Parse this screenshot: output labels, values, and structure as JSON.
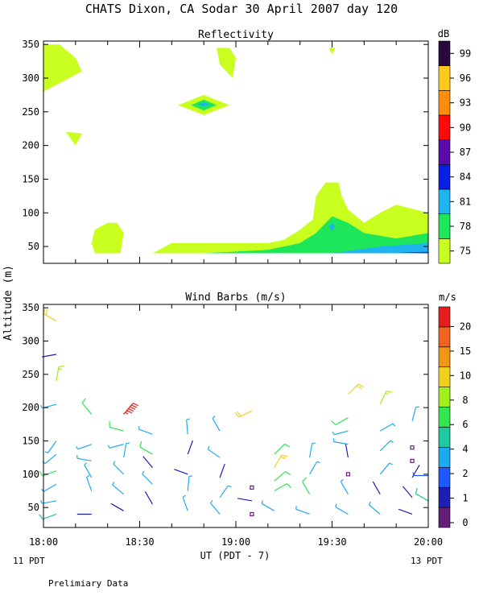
{
  "header": {
    "title": "CHATS Dixon, CA  Sodar  30 April 2007  day 120"
  },
  "footer": {
    "left_label": "11 PDT",
    "right_label": "13 PDT",
    "note": "Prelimiary Data"
  },
  "colors": {
    "refl": [
      "#c8ff1e",
      "#1ee65a",
      "#1eb4f0",
      "#0a1ee6",
      "#5a0aaa",
      "#ff0a0a",
      "#ff8c0a",
      "#ffc81e",
      "#2a0a3c"
    ],
    "wind": [
      "#641e78",
      "#1e1eb4",
      "#1e5aff",
      "#1eaaf0",
      "#1ec8a0",
      "#32e650",
      "#a0f01e",
      "#f0d21e",
      "#f09614",
      "#f0641e",
      "#e61e1e"
    ]
  },
  "chart_data": [
    {
      "type": "heatmap",
      "title": "Reflectivity",
      "colorbar_label": "dB",
      "colorbar_ticks": [
        "75",
        "78",
        "81",
        "84",
        "87",
        "90",
        "93",
        "96",
        "99"
      ],
      "ylim": [
        25,
        355
      ],
      "y_ticks": [
        "350",
        "300",
        "250",
        "200",
        "150",
        "100",
        "50"
      ],
      "xlim": [
        "18:00",
        "20:00"
      ],
      "regions": [
        {
          "level": 75,
          "x": [
            "18:00",
            "18:05",
            "18:10",
            "18:12",
            "18:08",
            "18:00",
            "18:00"
          ],
          "y": [
            350,
            350,
            330,
            310,
            300,
            280,
            350
          ]
        },
        {
          "level": 75,
          "x": [
            "18:54",
            "18:58",
            "19:00",
            "18:59",
            "18:55",
            "18:54"
          ],
          "y": [
            345,
            345,
            330,
            300,
            320,
            345
          ]
        },
        {
          "level": 75,
          "x": [
            "19:29",
            "19:31",
            "19:30",
            "19:29"
          ],
          "y": [
            345,
            345,
            335,
            345
          ]
        },
        {
          "level": 75,
          "x": [
            "18:42",
            "18:50",
            "18:58",
            "18:50",
            "18:42"
          ],
          "y": [
            260,
            275,
            260,
            245,
            260
          ]
        },
        {
          "level": 75,
          "x": [
            "18:07",
            "18:12",
            "18:10",
            "18:07"
          ],
          "y": [
            220,
            218,
            200,
            220
          ]
        },
        {
          "level": 75,
          "x": [
            "18:16",
            "18:20",
            "18:23",
            "18:25",
            "18:24",
            "18:16",
            "18:15",
            "18:16"
          ],
          "y": [
            75,
            85,
            85,
            70,
            40,
            40,
            55,
            75
          ]
        },
        {
          "level": 75,
          "x": [
            "18:34",
            "18:40",
            "19:10",
            "19:15",
            "19:20",
            "19:24",
            "19:25",
            "19:28",
            "19:32",
            "19:33",
            "19:35",
            "19:40",
            "19:45",
            "19:50",
            "20:00",
            "20:00",
            "18:34"
          ],
          "y": [
            40,
            55,
            55,
            60,
            75,
            90,
            125,
            145,
            145,
            125,
            105,
            85,
            100,
            112,
            100,
            40,
            40
          ]
        },
        {
          "level": 78,
          "x": [
            "18:50",
            "19:10",
            "19:20",
            "19:25",
            "19:30",
            "19:35",
            "19:40",
            "19:50",
            "20:00",
            "20:00",
            "18:50"
          ],
          "y": [
            40,
            45,
            55,
            70,
            95,
            85,
            70,
            62,
            70,
            40,
            40
          ]
        },
        {
          "level": 78,
          "x": [
            "18:46",
            "18:50",
            "18:54",
            "18:50",
            "18:46"
          ],
          "y": [
            260,
            268,
            260,
            252,
            260
          ]
        },
        {
          "level": 81,
          "x": [
            "19:30",
            "19:45",
            "20:00",
            "20:00",
            "19:30"
          ],
          "y": [
            40,
            50,
            55,
            40,
            40
          ]
        },
        {
          "level": 81,
          "x": [
            "19:29",
            "19:30",
            "19:31",
            "19:30",
            "19:29"
          ],
          "y": [
            80,
            85,
            80,
            73,
            80
          ]
        },
        {
          "level": 81,
          "x": [
            "18:48",
            "18:50",
            "18:52",
            "18:50",
            "18:48"
          ],
          "y": [
            261,
            264,
            261,
            258,
            261
          ]
        },
        {
          "level": 84,
          "x": [
            "19:50",
            "20:00",
            "20:00",
            "19:50"
          ],
          "y": [
            41,
            42,
            40,
            41
          ]
        }
      ]
    },
    {
      "type": "scatter",
      "title": "Wind Barbs (m/s)",
      "colorbar_label": "m/s",
      "colorbar_ticks": [
        "0",
        "1",
        "2",
        "4",
        "6",
        "8",
        "10",
        "15",
        "20"
      ],
      "ylabel": "Altitude (m)",
      "xlabel": "UT  (PDT - 7)",
      "ylim": [
        20,
        355
      ],
      "y_ticks": [
        "350",
        "300",
        "250",
        "200",
        "150",
        "100",
        "50"
      ],
      "x_ticks": [
        "18:00",
        "18:30",
        "19:00",
        "19:30",
        "20:00"
      ],
      "barbs": [
        {
          "x": "18:04",
          "y": 40,
          "dir": 250,
          "speed": 4
        },
        {
          "x": "18:04",
          "y": 60,
          "dir": 260,
          "speed": 3
        },
        {
          "x": "18:04",
          "y": 85,
          "dir": 240,
          "speed": 3
        },
        {
          "x": "18:04",
          "y": 105,
          "dir": 250,
          "speed": 5
        },
        {
          "x": "18:04",
          "y": 130,
          "dir": 230,
          "speed": 3
        },
        {
          "x": "18:04",
          "y": 150,
          "dir": 215,
          "speed": 3
        },
        {
          "x": "18:04",
          "y": 205,
          "dir": 255,
          "speed": 3
        },
        {
          "x": "18:04",
          "y": 240,
          "dir": 10,
          "speed": 6
        },
        {
          "x": "18:04",
          "y": 280,
          "dir": 260,
          "speed": 1
        },
        {
          "x": "18:04",
          "y": 330,
          "dir": 300,
          "speed": 9
        },
        {
          "x": "18:15",
          "y": 40,
          "dir": 270,
          "speed": 1
        },
        {
          "x": "18:15",
          "y": 75,
          "dir": 340,
          "speed": 3
        },
        {
          "x": "18:15",
          "y": 95,
          "dir": 330,
          "speed": 3
        },
        {
          "x": "18:15",
          "y": 120,
          "dir": 280,
          "speed": 3
        },
        {
          "x": "18:15",
          "y": 145,
          "dir": 250,
          "speed": 3
        },
        {
          "x": "18:15",
          "y": 190,
          "dir": 320,
          "speed": 5
        },
        {
          "x": "18:25",
          "y": 45,
          "dir": 300,
          "speed": 1
        },
        {
          "x": "18:25",
          "y": 70,
          "dir": 310,
          "speed": 3
        },
        {
          "x": "18:25",
          "y": 100,
          "dir": 315,
          "speed": 3
        },
        {
          "x": "18:25",
          "y": 125,
          "dir": 10,
          "speed": 3
        },
        {
          "x": "18:25",
          "y": 145,
          "dir": 255,
          "speed": 3
        },
        {
          "x": "18:25",
          "y": 165,
          "dir": 285,
          "speed": 5
        },
        {
          "x": "18:25",
          "y": 190,
          "dir": 40,
          "speed": 22
        },
        {
          "x": "18:34",
          "y": 55,
          "dir": 330,
          "speed": 1
        },
        {
          "x": "18:34",
          "y": 85,
          "dir": 315,
          "speed": 3
        },
        {
          "x": "18:34",
          "y": 110,
          "dir": 320,
          "speed": 1
        },
        {
          "x": "18:34",
          "y": 130,
          "dir": 300,
          "speed": 5
        },
        {
          "x": "18:34",
          "y": 160,
          "dir": 290,
          "speed": 3
        },
        {
          "x": "18:45",
          "y": 45,
          "dir": 340,
          "speed": 3
        },
        {
          "x": "18:45",
          "y": 75,
          "dir": 5,
          "speed": 3
        },
        {
          "x": "18:45",
          "y": 100,
          "dir": 290,
          "speed": 1
        },
        {
          "x": "18:45",
          "y": 130,
          "dir": 20,
          "speed": 1
        },
        {
          "x": "18:45",
          "y": 160,
          "dir": 355,
          "speed": 3
        },
        {
          "x": "18:55",
          "y": 40,
          "dir": 320,
          "speed": 3
        },
        {
          "x": "18:55",
          "y": 65,
          "dir": 35,
          "speed": 3
        },
        {
          "x": "18:55",
          "y": 95,
          "dir": 20,
          "speed": 1
        },
        {
          "x": "18:55",
          "y": 125,
          "dir": 305,
          "speed": 3
        },
        {
          "x": "18:55",
          "y": 165,
          "dir": 330,
          "speed": 3
        },
        {
          "x": "19:05",
          "y": 40,
          "dir": 0,
          "speed": 0
        },
        {
          "x": "19:05",
          "y": 60,
          "dir": 280,
          "speed": 1
        },
        {
          "x": "19:05",
          "y": 80,
          "dir": 0,
          "speed": 0
        },
        {
          "x": "19:05",
          "y": 195,
          "dir": 245,
          "speed": 9
        },
        {
          "x": "19:12",
          "y": 45,
          "dir": 300,
          "speed": 3
        },
        {
          "x": "19:12",
          "y": 75,
          "dir": 60,
          "speed": 5
        },
        {
          "x": "19:12",
          "y": 90,
          "dir": 50,
          "speed": 5
        },
        {
          "x": "19:12",
          "y": 110,
          "dir": 30,
          "speed": 8
        },
        {
          "x": "19:12",
          "y": 130,
          "dir": 45,
          "speed": 5
        },
        {
          "x": "19:23",
          "y": 40,
          "dir": 290,
          "speed": 3
        },
        {
          "x": "19:23",
          "y": 70,
          "dir": 330,
          "speed": 5
        },
        {
          "x": "19:23",
          "y": 100,
          "dir": 30,
          "speed": 3
        },
        {
          "x": "19:23",
          "y": 125,
          "dir": 10,
          "speed": 3
        },
        {
          "x": "19:35",
          "y": 40,
          "dir": 300,
          "speed": 3
        },
        {
          "x": "19:35",
          "y": 70,
          "dir": 330,
          "speed": 3
        },
        {
          "x": "19:35",
          "y": 100,
          "dir": 0,
          "speed": 0
        },
        {
          "x": "19:35",
          "y": 125,
          "dir": 350,
          "speed": 1
        },
        {
          "x": "19:35",
          "y": 145,
          "dir": 280,
          "speed": 3
        },
        {
          "x": "19:35",
          "y": 165,
          "dir": 255,
          "speed": 3
        },
        {
          "x": "19:35",
          "y": 185,
          "dir": 240,
          "speed": 5
        },
        {
          "x": "19:35",
          "y": 220,
          "dir": 45,
          "speed": 9
        },
        {
          "x": "19:45",
          "y": 40,
          "dir": 310,
          "speed": 3
        },
        {
          "x": "19:45",
          "y": 70,
          "dir": 330,
          "speed": 1
        },
        {
          "x": "19:45",
          "y": 100,
          "dir": 40,
          "speed": 3
        },
        {
          "x": "19:45",
          "y": 135,
          "dir": 45,
          "speed": 3
        },
        {
          "x": "19:45",
          "y": 165,
          "dir": 60,
          "speed": 3
        },
        {
          "x": "19:45",
          "y": 205,
          "dir": 25,
          "speed": 6
        },
        {
          "x": "19:55",
          "y": 40,
          "dir": 290,
          "speed": 1
        },
        {
          "x": "19:55",
          "y": 65,
          "dir": 320,
          "speed": 1
        },
        {
          "x": "19:55",
          "y": 95,
          "dir": 30,
          "speed": 1
        },
        {
          "x": "19:55",
          "y": 120,
          "dir": 0,
          "speed": 0
        },
        {
          "x": "19:55",
          "y": 140,
          "dir": 0,
          "speed": 0
        },
        {
          "x": "19:55",
          "y": 180,
          "dir": 15,
          "speed": 3
        },
        {
          "x": "20:00",
          "y": 60,
          "dir": 300,
          "speed": 4
        },
        {
          "x": "20:00",
          "y": 98,
          "dir": 270,
          "speed": 2
        }
      ]
    }
  ]
}
